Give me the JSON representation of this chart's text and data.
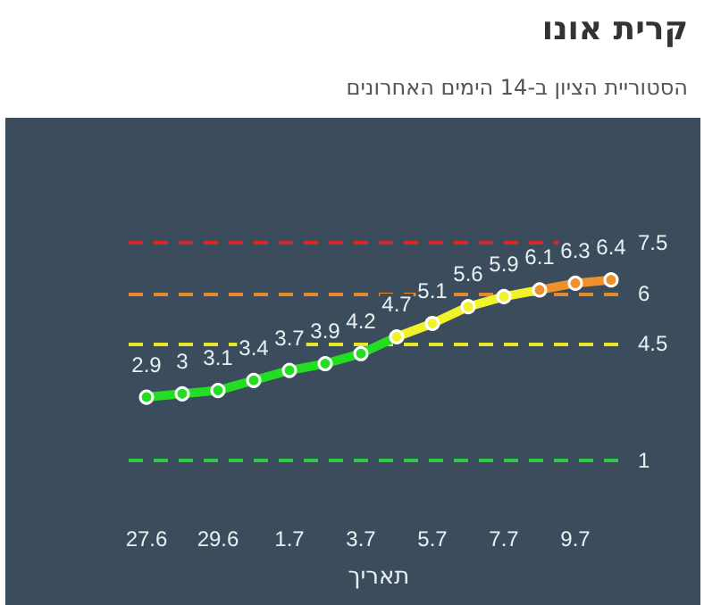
{
  "chart_data": {
    "type": "line",
    "title": "קרית אונו",
    "subtitle": "הסטוריית הציון ב-14 הימים האחרונים",
    "xlabel": "תאריך",
    "categories": [
      "27.6",
      null,
      "29.6",
      null,
      "1.7",
      null,
      "3.7",
      null,
      "5.7",
      null,
      "7.7",
      null,
      "9.7",
      null
    ],
    "series": [
      {
        "values": [
          2.9,
          3,
          3.1,
          3.4,
          3.7,
          3.9,
          4.2,
          4.7,
          5.1,
          5.6,
          5.9,
          6.1,
          6.3,
          6.4
        ],
        "colors": [
          "#22dd22",
          "#22dd22",
          "#22dd22",
          "#22dd22",
          "#22dd22",
          "#22dd22",
          "#22dd22",
          "#f2f22a",
          "#f2f22a",
          "#f2f22a",
          "#f2f22a",
          "#f0902a",
          "#f0902a",
          "#f0902a"
        ]
      }
    ],
    "data_labels": true,
    "marker": "circle",
    "line_style": "solid",
    "grid": false,
    "ref_lines": [
      {
        "axis": "y",
        "value": 7.5,
        "label": "7.5",
        "color": "#d42a2a",
        "line_style": "dashed"
      },
      {
        "axis": "y",
        "value": 6,
        "label": "6",
        "color": "#e8892c",
        "line_style": "dashed"
      },
      {
        "axis": "y",
        "value": 4.5,
        "label": "4.5",
        "color": "#e6e62a",
        "line_style": "dashed"
      },
      {
        "axis": "y",
        "value": 1,
        "label": "1",
        "color": "#2ecc40",
        "line_style": "dashed"
      }
    ]
  }
}
